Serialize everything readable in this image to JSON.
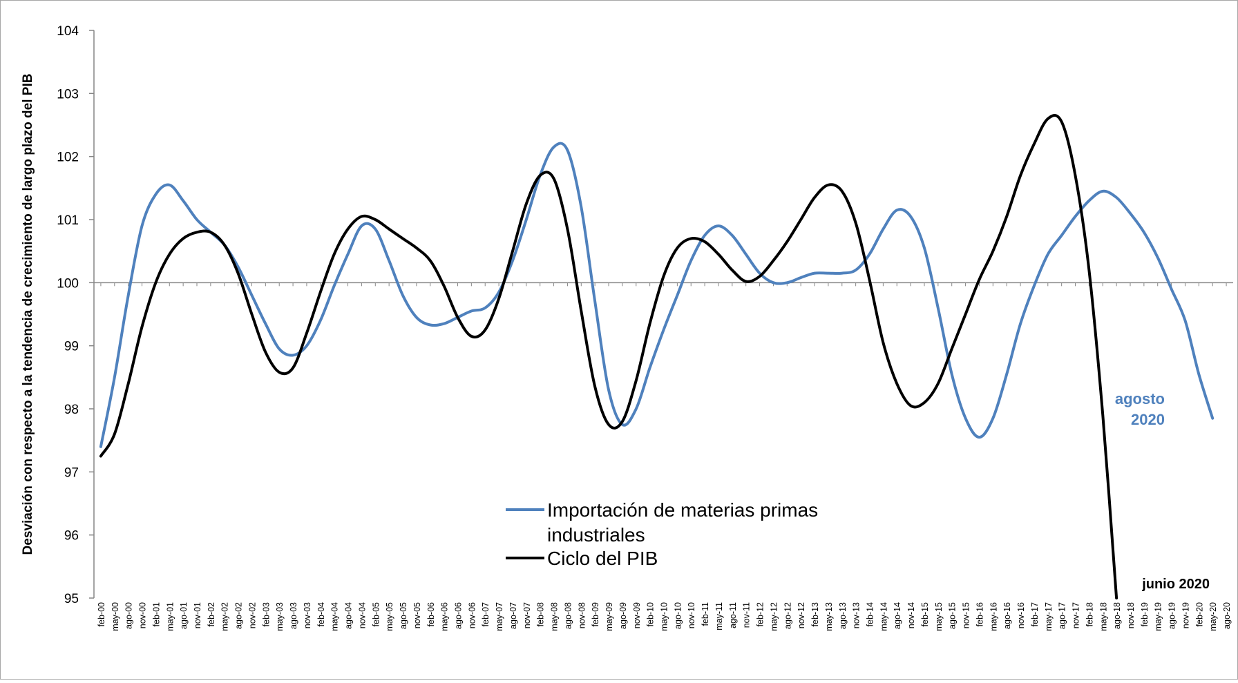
{
  "chart_data": {
    "type": "line",
    "title": "",
    "ylabel": "Desviación con respecto a la tendencia de crecimiento de largo plazo del PIB",
    "xlabel": "",
    "ylim": [
      95,
      104
    ],
    "yticks": [
      95,
      96,
      97,
      98,
      99,
      100,
      101,
      102,
      103,
      104
    ],
    "reference_line": 100,
    "grid": false,
    "legend_placement": "bottom-center",
    "x_tick_labels": [
      "feb-00",
      "may-00",
      "ago-00",
      "nov-00",
      "feb-01",
      "may-01",
      "ago-01",
      "nov-01",
      "feb-02",
      "may-02",
      "ago-02",
      "nov-02",
      "feb-03",
      "may-03",
      "ago-03",
      "nov-03",
      "feb-04",
      "may-04",
      "ago-04",
      "nov-04",
      "feb-05",
      "may-05",
      "ago-05",
      "nov-05",
      "feb-06",
      "may-06",
      "ago-06",
      "nov-06",
      "feb-07",
      "may-07",
      "ago-07",
      "nov-07",
      "feb-08",
      "may-08",
      "ago-08",
      "nov-08",
      "feb-09",
      "may-09",
      "ago-09",
      "nov-09",
      "feb-10",
      "may-10",
      "ago-10",
      "nov-10",
      "feb-11",
      "may-11",
      "ago-11",
      "nov-11",
      "feb-12",
      "may-12",
      "ago-12",
      "nov-12",
      "feb-13",
      "may-13",
      "ago-13",
      "nov-13",
      "feb-14",
      "may-14",
      "ago-14",
      "nov-14",
      "feb-15",
      "may-15",
      "ago-15",
      "nov-15",
      "feb-16",
      "may-16",
      "ago-16",
      "nov-16",
      "feb-17",
      "may-17",
      "ago-17",
      "nov-17",
      "feb-18",
      "may-18",
      "ago-18",
      "nov-18",
      "feb-19",
      "may-19",
      "ago-19",
      "nov-19",
      "feb-20",
      "may-20",
      "ago-20"
    ],
    "series": [
      {
        "name": "Importación de materias primas industriales",
        "color": "#4f81bd",
        "points": [
          [
            "feb-00",
            97.4
          ],
          [
            "may-00",
            98.5
          ],
          [
            "ago-00",
            99.8
          ],
          [
            "nov-00",
            100.9
          ],
          [
            "feb-01",
            101.4
          ],
          [
            "may-01",
            101.55
          ],
          [
            "ago-01",
            101.3
          ],
          [
            "nov-01",
            101.0
          ],
          [
            "feb-02",
            100.8
          ],
          [
            "may-02",
            100.6
          ],
          [
            "ago-02",
            100.25
          ],
          [
            "nov-02",
            99.8
          ],
          [
            "feb-03",
            99.35
          ],
          [
            "may-03",
            98.95
          ],
          [
            "ago-03",
            98.85
          ],
          [
            "nov-03",
            99.0
          ],
          [
            "feb-04",
            99.4
          ],
          [
            "may-04",
            99.95
          ],
          [
            "ago-04",
            100.45
          ],
          [
            "nov-04",
            100.9
          ],
          [
            "feb-05",
            100.85
          ],
          [
            "may-05",
            100.35
          ],
          [
            "ago-05",
            99.8
          ],
          [
            "nov-05",
            99.45
          ],
          [
            "feb-06",
            99.33
          ],
          [
            "may-06",
            99.35
          ],
          [
            "ago-06",
            99.45
          ],
          [
            "nov-06",
            99.55
          ],
          [
            "feb-07",
            99.6
          ],
          [
            "may-07",
            99.85
          ],
          [
            "ago-07",
            100.35
          ],
          [
            "nov-07",
            101.0
          ],
          [
            "feb-08",
            101.7
          ],
          [
            "may-08",
            102.15
          ],
          [
            "ago-08",
            102.1
          ],
          [
            "nov-08",
            101.2
          ],
          [
            "feb-09",
            99.7
          ],
          [
            "may-09",
            98.3
          ],
          [
            "ago-09",
            97.75
          ],
          [
            "nov-09",
            98.0
          ],
          [
            "feb-10",
            98.65
          ],
          [
            "may-10",
            99.25
          ],
          [
            "ago-10",
            99.8
          ],
          [
            "nov-10",
            100.35
          ],
          [
            "feb-11",
            100.75
          ],
          [
            "may-11",
            100.9
          ],
          [
            "ago-11",
            100.75
          ],
          [
            "nov-11",
            100.45
          ],
          [
            "feb-12",
            100.15
          ],
          [
            "may-12",
            100.0
          ],
          [
            "ago-12",
            100.0
          ],
          [
            "nov-12",
            100.08
          ],
          [
            "feb-13",
            100.15
          ],
          [
            "may-13",
            100.15
          ],
          [
            "ago-13",
            100.15
          ],
          [
            "nov-13",
            100.2
          ],
          [
            "feb-14",
            100.45
          ],
          [
            "may-14",
            100.85
          ],
          [
            "ago-14",
            101.15
          ],
          [
            "nov-14",
            101.05
          ],
          [
            "feb-15",
            100.55
          ],
          [
            "may-15",
            99.6
          ],
          [
            "ago-15",
            98.55
          ],
          [
            "nov-15",
            97.85
          ],
          [
            "feb-16",
            97.55
          ],
          [
            "may-16",
            97.85
          ],
          [
            "ago-16",
            98.55
          ],
          [
            "nov-16",
            99.35
          ],
          [
            "feb-17",
            99.95
          ],
          [
            "may-17",
            100.45
          ],
          [
            "ago-17",
            100.75
          ],
          [
            "nov-17",
            101.05
          ],
          [
            "feb-18",
            101.3
          ],
          [
            "may-18",
            101.45
          ],
          [
            "ago-18",
            101.35
          ],
          [
            "nov-18",
            101.1
          ],
          [
            "feb-19",
            100.8
          ],
          [
            "may-19",
            100.4
          ],
          [
            "ago-19",
            99.9
          ],
          [
            "nov-19",
            99.4
          ],
          [
            "feb-20",
            98.55
          ],
          [
            "may-20",
            97.85
          ]
        ]
      },
      {
        "name": "Ciclo del PIB",
        "color": "#000000",
        "points": [
          [
            "feb-00",
            97.25
          ],
          [
            "may-00",
            97.6
          ],
          [
            "ago-00",
            98.4
          ],
          [
            "nov-00",
            99.3
          ],
          [
            "feb-01",
            100.0
          ],
          [
            "may-01",
            100.45
          ],
          [
            "ago-01",
            100.7
          ],
          [
            "nov-01",
            100.8
          ],
          [
            "feb-02",
            100.8
          ],
          [
            "may-02",
            100.6
          ],
          [
            "ago-02",
            100.15
          ],
          [
            "nov-02",
            99.5
          ],
          [
            "feb-03",
            98.9
          ],
          [
            "may-03",
            98.58
          ],
          [
            "ago-03",
            98.65
          ],
          [
            "nov-03",
            99.2
          ],
          [
            "feb-04",
            99.85
          ],
          [
            "may-04",
            100.45
          ],
          [
            "ago-04",
            100.85
          ],
          [
            "nov-04",
            101.05
          ],
          [
            "feb-05",
            101.0
          ],
          [
            "may-05",
            100.85
          ],
          [
            "ago-05",
            100.7
          ],
          [
            "nov-05",
            100.55
          ],
          [
            "feb-06",
            100.35
          ],
          [
            "may-06",
            99.95
          ],
          [
            "ago-06",
            99.45
          ],
          [
            "nov-06",
            99.15
          ],
          [
            "feb-07",
            99.25
          ],
          [
            "may-07",
            99.75
          ],
          [
            "ago-07",
            100.5
          ],
          [
            "nov-07",
            101.25
          ],
          [
            "feb-08",
            101.7
          ],
          [
            "may-08",
            101.65
          ],
          [
            "ago-08",
            100.85
          ],
          [
            "nov-08",
            99.55
          ],
          [
            "feb-09",
            98.35
          ],
          [
            "may-09",
            97.75
          ],
          [
            "ago-09",
            97.8
          ],
          [
            "nov-09",
            98.45
          ],
          [
            "feb-10",
            99.35
          ],
          [
            "may-10",
            100.1
          ],
          [
            "ago-10",
            100.55
          ],
          [
            "nov-10",
            100.7
          ],
          [
            "feb-11",
            100.65
          ],
          [
            "may-11",
            100.45
          ],
          [
            "ago-11",
            100.2
          ],
          [
            "nov-11",
            100.02
          ],
          [
            "feb-12",
            100.1
          ],
          [
            "may-12",
            100.35
          ],
          [
            "ago-12",
            100.65
          ],
          [
            "nov-12",
            101.0
          ],
          [
            "feb-13",
            101.35
          ],
          [
            "may-13",
            101.55
          ],
          [
            "ago-13",
            101.45
          ],
          [
            "nov-13",
            100.95
          ],
          [
            "feb-14",
            100.05
          ],
          [
            "may-14",
            99.05
          ],
          [
            "ago-14",
            98.4
          ],
          [
            "nov-14",
            98.05
          ],
          [
            "feb-15",
            98.1
          ],
          [
            "may-15",
            98.4
          ],
          [
            "ago-15",
            98.95
          ],
          [
            "nov-15",
            99.5
          ],
          [
            "feb-16",
            100.05
          ],
          [
            "may-16",
            100.5
          ],
          [
            "ago-16",
            101.05
          ],
          [
            "nov-16",
            101.7
          ],
          [
            "feb-17",
            102.2
          ],
          [
            "may-17",
            102.6
          ],
          [
            "ago-17",
            102.55
          ],
          [
            "nov-17",
            101.7
          ],
          [
            "feb-18",
            100.2
          ],
          [
            "may-18",
            97.9
          ],
          [
            "ago-18",
            95.0
          ]
        ]
      }
    ],
    "annotations": [
      {
        "text_line1": "agosto",
        "text_line2": "2020",
        "color": "#4f81bd"
      },
      {
        "text": "junio 2020",
        "color": "#000000"
      }
    ]
  }
}
